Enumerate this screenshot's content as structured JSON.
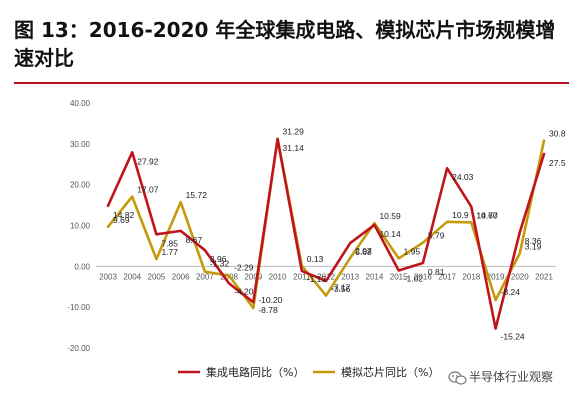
{
  "header": {
    "title": "图 13：2016-2020 年全球集成电路、模拟芯片市场规模增速对比"
  },
  "watermark": {
    "text": "半导体行业观察",
    "icon": "wechat-icon"
  },
  "chart_data": {
    "type": "line",
    "categories": [
      "2003",
      "2004",
      "2005",
      "2006",
      "2007",
      "2008",
      "2009",
      "2010",
      "2011",
      "2012",
      "2013",
      "2014",
      "2015",
      "2016",
      "2017",
      "2018",
      "2019",
      "2020",
      "2021"
    ],
    "ylim": [
      -20,
      40
    ],
    "yticks": [
      "40.00",
      "30.00",
      "20.00",
      "10.00",
      "0.00",
      "-10.00",
      "-20.00"
    ],
    "ytick_values": [
      40,
      30,
      20,
      10,
      0,
      -10,
      -20
    ],
    "grid": false,
    "legend_position": "bottom",
    "series": [
      {
        "name": "集成电路同比（%）",
        "color": "#c0141c",
        "values": [
          14.82,
          27.92,
          7.85,
          8.67,
          3.96,
          -4.2,
          -8.78,
          31.14,
          -1.13,
          -3.56,
          5.68,
          10.14,
          -1.02,
          0.81,
          24.03,
          14.6,
          -15.24,
          8.36,
          27.5
        ],
        "labels": [
          "14.82",
          "27.92",
          "7.85",
          "8.67",
          "3.96",
          "-4.20",
          "-8.78",
          "31.14",
          "-1.13",
          "-3.56",
          "5.68",
          "10.14",
          "-1.02",
          "0.81",
          "24.03",
          "14.60",
          "-15.24",
          "8.36",
          "27.5"
        ]
      },
      {
        "name": "模拟芯片同比（%）",
        "color": "#c49a0c",
        "values": [
          9.69,
          17.07,
          1.77,
          15.72,
          -1.32,
          -2.29,
          -10.2,
          31.29,
          0.13,
          -7.17,
          2.07,
          10.59,
          1.95,
          5.79,
          10.9,
          10.77,
          -8.24,
          3.19,
          30.8
        ],
        "labels": [
          "9.69",
          "17.07",
          "1.77",
          "15.72",
          "-1.32",
          "-2.29",
          "-10.20",
          "31.29",
          "0.13",
          "-7.17",
          "2.07",
          "10.59",
          "1.95",
          "5.79",
          "10.9",
          "10.77",
          "-8.24",
          "3.19",
          "30.8"
        ]
      }
    ]
  }
}
